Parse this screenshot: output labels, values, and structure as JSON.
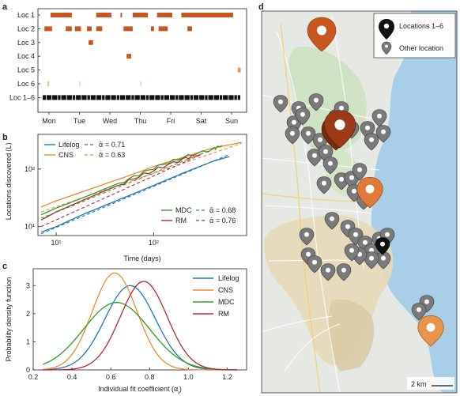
{
  "colors": {
    "lifelog": "#1f77b4",
    "cns": "#ee8a2e",
    "mdc": "#2ca02c",
    "rm": "#b5283a",
    "loc_orange": "#c8561f",
    "loc6": "#f0c08a",
    "black": "#111111"
  },
  "panel_a": {
    "letter": "a",
    "rows": [
      "Loc 1",
      "Loc 2",
      "Loc 3",
      "Loc 4",
      "Loc 5",
      "Loc 6",
      "Loc 1–6"
    ],
    "days": [
      "Mon",
      "Tue",
      "Wed",
      "Thu",
      "Fri",
      "Sat",
      "Sun"
    ]
  },
  "panel_b": {
    "letter": "b",
    "ylabel": "Locations discovered",
    "ylabel_sym": "⟨L⟩",
    "xlabel": "Time (days)",
    "yticks": [
      "10¹",
      "10²"
    ],
    "xticks": [
      "10¹",
      "10²"
    ],
    "legend_left": [
      {
        "name": "Lifelog",
        "alpha": "= 0.71"
      },
      {
        "name": "CNS",
        "alpha": "= 0.63"
      }
    ],
    "legend_right": [
      {
        "name": "MDC",
        "alpha": "= 0.68"
      },
      {
        "name": "RM",
        "alpha": "= 0.76"
      }
    ],
    "alpha_symbol": "ᾱ"
  },
  "panel_c": {
    "letter": "c",
    "ylabel": "Probability density function",
    "xlabel": "Individual fit coefficient (α",
    "xlabel_sub": "i",
    "xlabel_end": ")",
    "xticks": [
      "0.2",
      "0.4",
      "0.6",
      "0.8",
      "1.0",
      "1.2"
    ],
    "yticks": [
      "0",
      "1",
      "2",
      "3"
    ],
    "legend": [
      "Lifelog",
      "CNS",
      "MDC",
      "RM"
    ]
  },
  "panel_d": {
    "letter": "d",
    "legend_main": "Locations 1–6",
    "legend_other": "Other location",
    "scale": "2 km"
  },
  "chart_data": [
    {
      "type": "timeline",
      "rows": [
        "Loc 1",
        "Loc 2",
        "Loc 3",
        "Loc 4",
        "Loc 5",
        "Loc 6",
        "Loc 1–6"
      ],
      "x_unit": "days from Monday",
      "intervals": {
        "Loc 1": [
          [
            0.05,
            0.75
          ],
          [
            1.55,
            2.05
          ],
          [
            2.35,
            2.4
          ],
          [
            2.75,
            3.25
          ],
          [
            3.55,
            4.05
          ],
          [
            4.35,
            6.05
          ]
        ],
        "Loc 2": [
          [
            -0.15,
            0.1
          ],
          [
            0.55,
            0.75
          ],
          [
            0.85,
            1.05
          ],
          [
            1.25,
            1.4
          ],
          [
            1.55,
            1.75
          ],
          [
            2.45,
            2.75
          ],
          [
            3.35,
            3.45
          ],
          [
            3.6,
            3.9
          ],
          [
            4.55,
            4.7
          ]
        ],
        "Loc 3": [
          [
            1.3,
            1.45
          ]
        ],
        "Loc 4": [
          [
            2.55,
            2.7
          ]
        ],
        "Loc 5": [
          [
            6.2,
            6.3
          ]
        ],
        "Loc 6": [
          [
            -0.05,
            0.0
          ],
          [
            1.0,
            1.03
          ],
          [
            3.0,
            3.03
          ]
        ]
      }
    },
    {
      "type": "line",
      "xscale": "log",
      "yscale": "log",
      "xlabel": "Time (days)",
      "ylabel": "Locations discovered",
      "xlim": [
        6.5,
        900
      ],
      "ylim": [
        7,
        400
      ],
      "series": [
        {
          "name": "Lifelog",
          "x": [
            7,
            10,
            20,
            50,
            100,
            200,
            400,
            600
          ],
          "y": [
            8,
            10,
            17,
            32,
            52,
            85,
            135,
            165
          ]
        },
        {
          "name": "CNS",
          "x": [
            7,
            10,
            20,
            50,
            100,
            200,
            400,
            800
          ],
          "y": [
            22,
            28,
            42,
            72,
            110,
            160,
            230,
            290
          ]
        },
        {
          "name": "MDC",
          "x": [
            7,
            10,
            20,
            50,
            100,
            200,
            400,
            500
          ],
          "y": [
            16,
            21,
            33,
            62,
            105,
            160,
            220,
            260
          ]
        },
        {
          "name": "RM",
          "x": [
            7,
            10,
            20,
            50,
            100,
            200,
            300
          ],
          "y": [
            13,
            18,
            30,
            58,
            95,
            150,
            180
          ]
        }
      ],
      "fits": [
        {
          "name": "ᾱ = 0.71",
          "alpha": 0.71,
          "x": [
            7,
            600
          ],
          "y": [
            7.5,
            180
          ]
        },
        {
          "name": "ᾱ = 0.63",
          "alpha": 0.63,
          "x": [
            7,
            800
          ],
          "y": [
            18,
            280
          ]
        },
        {
          "name": "ᾱ = 0.68",
          "alpha": 0.68,
          "x": [
            7,
            500
          ],
          "y": [
            14,
            255
          ]
        },
        {
          "name": "ᾱ = 0.76",
          "alpha": 0.76,
          "x": [
            7,
            300
          ],
          "y": [
            10,
            175
          ]
        }
      ]
    },
    {
      "type": "density",
      "xlabel": "Individual fit coefficient (αi)",
      "ylabel": "Probability density function",
      "xlim": [
        0.2,
        1.3
      ],
      "ylim": [
        0,
        3.6
      ],
      "series": [
        {
          "name": "Lifelog",
          "mean": 0.7,
          "sd": 0.13,
          "peak": 3.0
        },
        {
          "name": "CNS",
          "mean": 0.62,
          "sd": 0.115,
          "peak": 3.45
        },
        {
          "name": "MDC",
          "mean": 0.63,
          "sd": 0.17,
          "peak": 2.4
        },
        {
          "name": "RM",
          "mean": 0.77,
          "sd": 0.12,
          "peak": 3.15
        }
      ]
    }
  ]
}
